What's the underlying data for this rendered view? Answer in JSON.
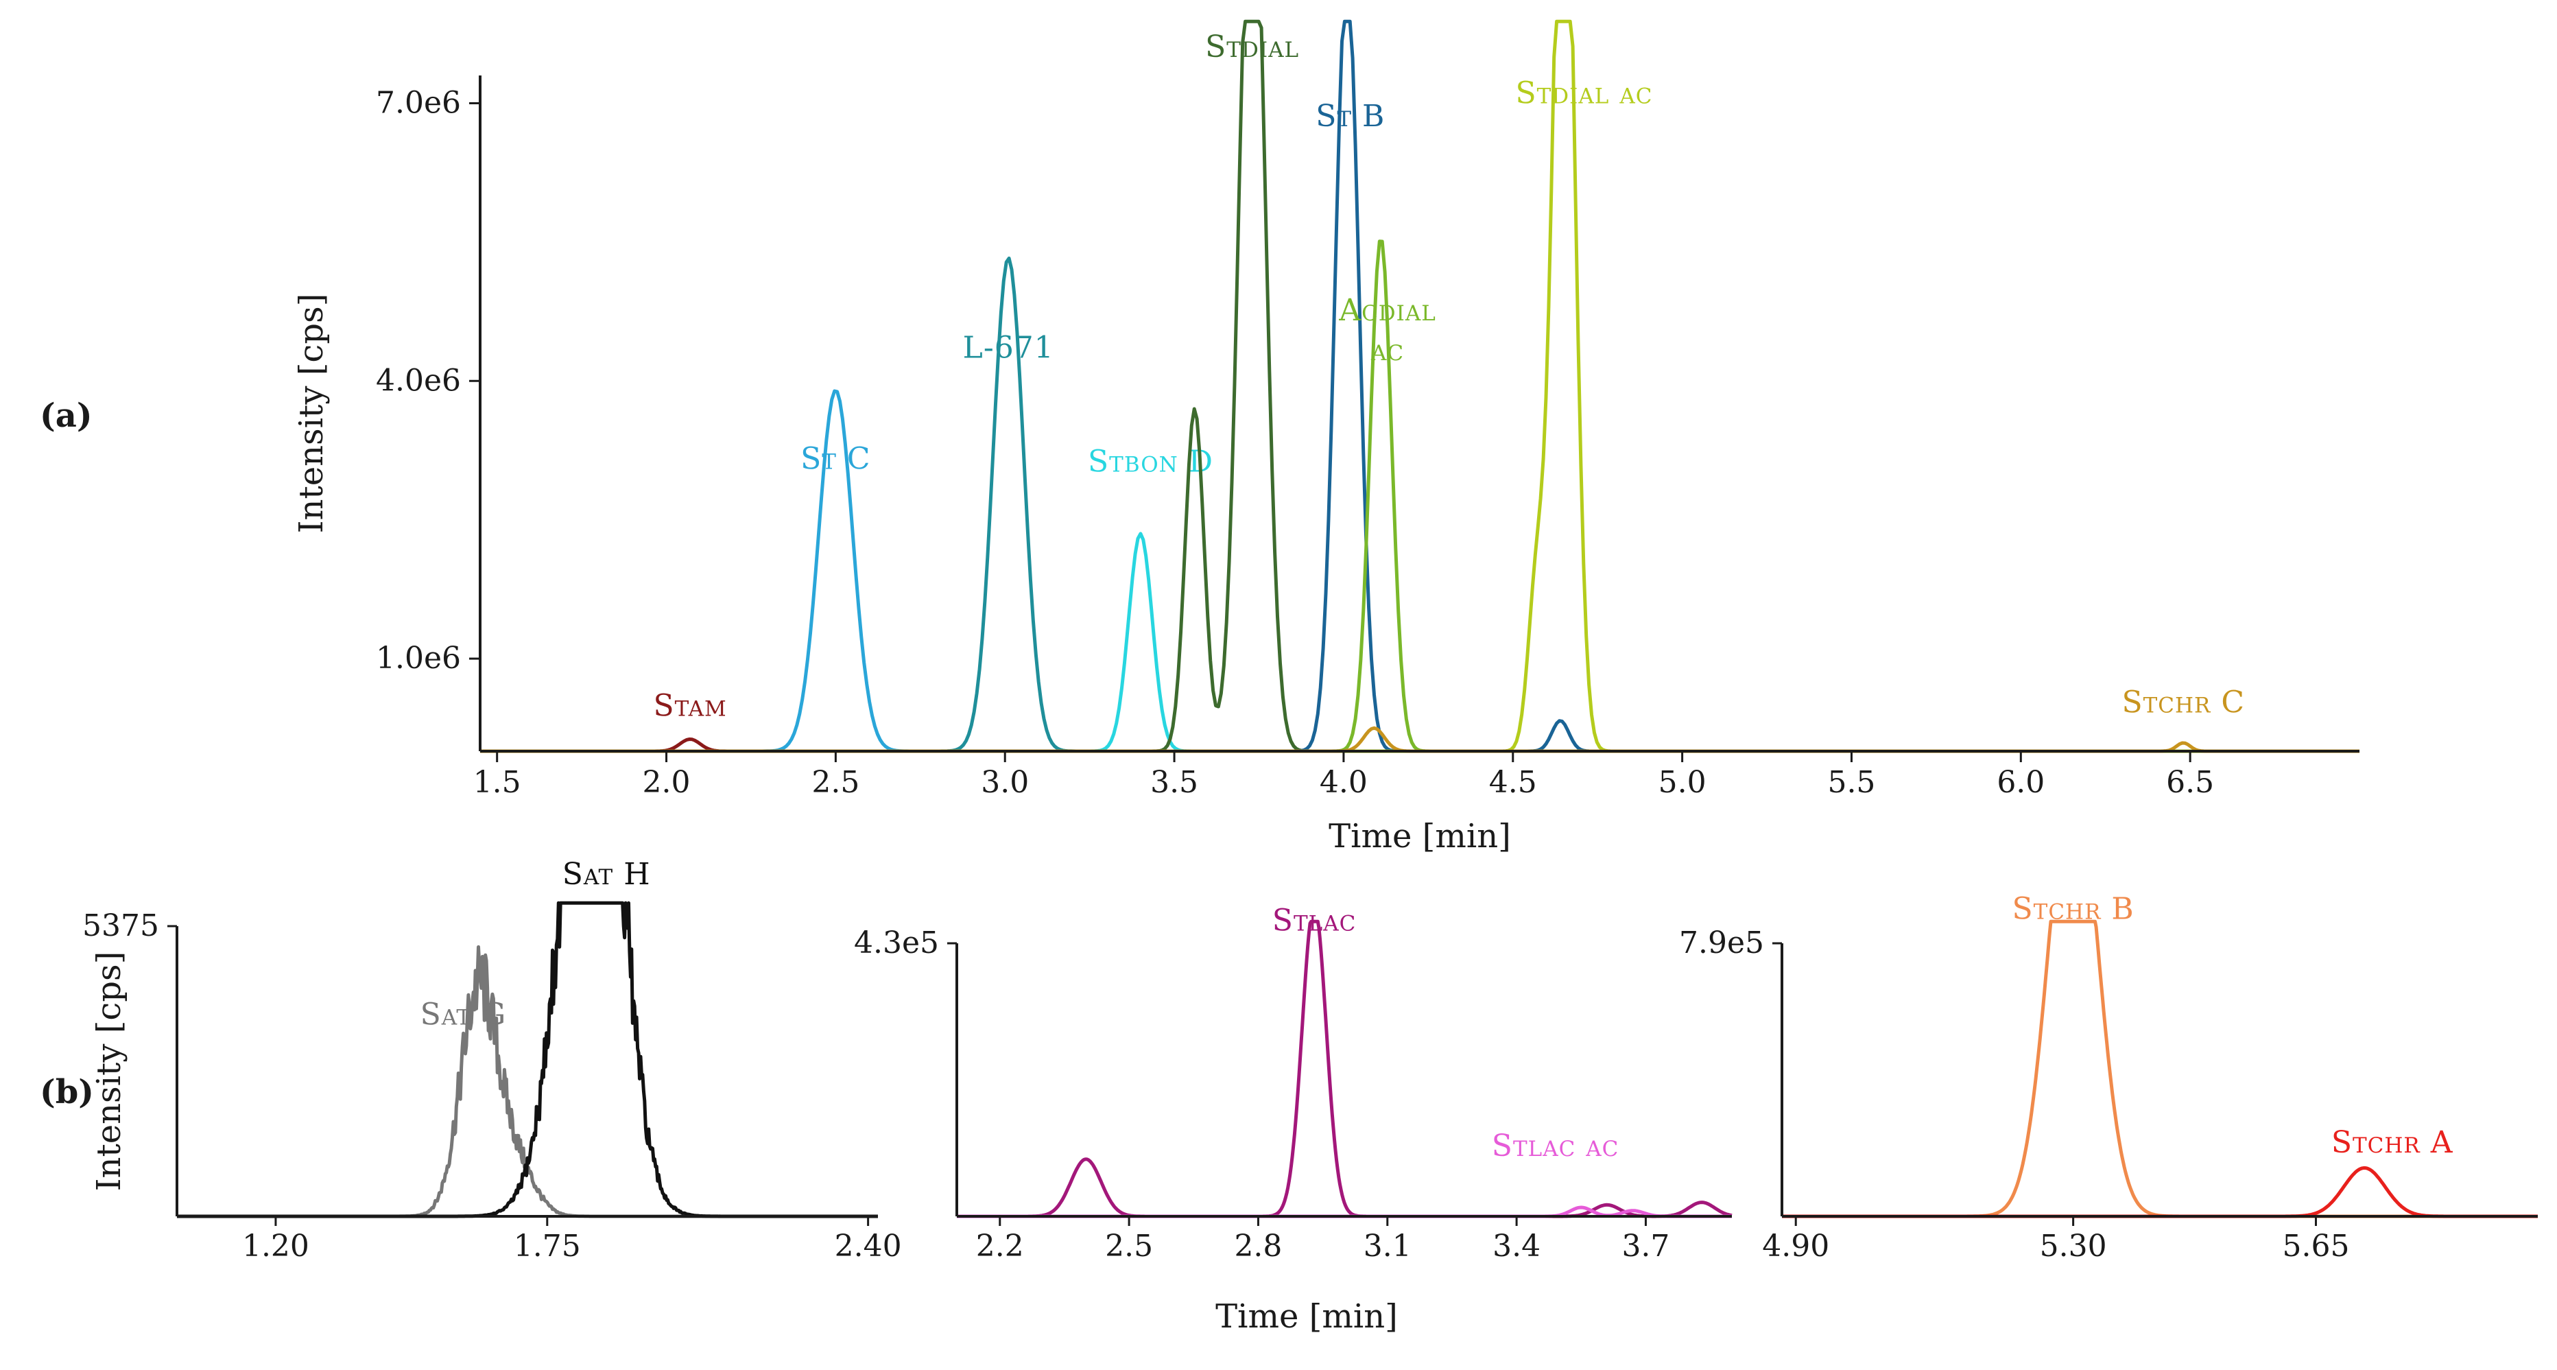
{
  "figure": {
    "panel_a_label": "(a)",
    "panel_b_label": "(b)",
    "shared_xlabel": "Time [min]"
  },
  "chart_data": [
    {
      "type": "line",
      "id": "a",
      "xlabel": "Time [min]",
      "ylabel": "Intensity [cps]",
      "xlim": [
        1.45,
        7.0
      ],
      "ylim": [
        0,
        7300000
      ],
      "x_ticks": [
        "1.5",
        "2.0",
        "2.5",
        "3.0",
        "3.5",
        "4.0",
        "4.5",
        "5.0",
        "5.5",
        "6.0",
        "6.5"
      ],
      "y_ticks": [
        {
          "value": 1000000,
          "label": "1.0e6"
        },
        {
          "value": 4000000,
          "label": "4.0e6"
        },
        {
          "value": 7000000,
          "label": "7.0e6"
        }
      ],
      "series": [
        {
          "name": "Stam",
          "color": "#8b1a1a",
          "peaks": [
            [
              2.07,
              75000,
              0.03
            ],
            [
              2.07,
              55000,
              0.03
            ]
          ],
          "label_at": [
            2.07,
            380000
          ]
        },
        {
          "name": "St C",
          "color": "#2aa6d9",
          "peaks": [
            [
              2.5,
              2850000,
              0.05
            ],
            [
              2.5,
              1050000,
              0.05
            ]
          ],
          "label_at": [
            2.5,
            3050000
          ]
        },
        {
          "name": "L-671",
          "color": "#1f8f9a",
          "peaks": [
            [
              3.01,
              4050000,
              0.045
            ],
            [
              3.01,
              1280000,
              0.045
            ]
          ],
          "label_at": [
            3.01,
            4250000
          ]
        },
        {
          "name": "Stbon D",
          "color": "#28d6e0",
          "peaks": [
            [
              3.4,
              1350000,
              0.035
            ],
            [
              3.4,
              1000000,
              0.035
            ]
          ],
          "label_at": [
            3.43,
            3020000
          ]
        },
        {
          "name": "Stdial",
          "color": "#3d6b2e",
          "peaks": [
            [
              3.73,
              7200000,
              0.038
            ],
            [
              3.56,
              2700000,
              0.028
            ],
            [
              3.73,
              2900000,
              0.038
            ],
            [
              3.56,
              1000000,
              0.028
            ]
          ],
          "label_at": [
            3.73,
            7500000
          ]
        },
        {
          "name": "St B",
          "color": "#1a6496",
          "peaks": [
            [
              4.01,
              6500000,
              0.035
            ],
            [
              4.01,
              1900000,
              0.035
            ],
            [
              4.64,
              330000,
              0.025
            ]
          ],
          "label_at": [
            4.02,
            6750000
          ]
        },
        {
          "name": "Acdial ac",
          "color": "#7ab82a",
          "peaks": [
            [
              4.11,
              3300000,
              0.032
            ],
            [
              4.11,
              2250000,
              0.032
            ]
          ],
          "label_at": [
            4.13,
            4300000
          ],
          "label_lines": [
            "Acdial",
            "ac"
          ]
        },
        {
          "name": "Stdial ac",
          "color": "#b4cc1c",
          "peaks": [
            [
              4.65,
              6550000,
              0.032
            ],
            [
              4.65,
              4300000,
              0.032
            ],
            [
              4.57,
              1800000,
              0.025
            ]
          ],
          "label_at": [
            4.71,
            7000000
          ]
        },
        {
          "name": "Stchr C",
          "color": "#c8941e",
          "peaks": [
            [
              6.48,
              90000,
              0.02
            ],
            [
              4.09,
              250000,
              0.03
            ]
          ],
          "label_at": [
            6.48,
            420000
          ]
        }
      ]
    },
    {
      "type": "line",
      "id": "b1",
      "xlabel": "",
      "ylabel": "Intensity [cps]",
      "xlim": [
        1.0,
        2.42
      ],
      "ylim": [
        0,
        5375
      ],
      "x_ticks": [
        "1.20",
        "1.75",
        "2.40"
      ],
      "y_ticks": [
        {
          "value": 5375,
          "label": "5375"
        }
      ],
      "series": [
        {
          "name": "Sat G",
          "color": "#777777",
          "peaks": [
            [
              1.61,
              2950,
              0.035
            ],
            [
              1.68,
              1050,
              0.04
            ],
            [
              1.61,
              1150,
              0.04
            ]
          ],
          "label_at": [
            1.58,
            3550
          ]
        },
        {
          "name": "Sat H",
          "color": "#111111",
          "peaks": [
            [
              1.85,
              5750,
              0.05
            ],
            [
              1.82,
              3700,
              0.06
            ],
            [
              1.85,
              2650,
              0.06
            ]
          ],
          "label_at": [
            1.87,
            6150
          ]
        }
      ]
    },
    {
      "type": "line",
      "id": "b2",
      "xlabel": "",
      "ylabel": "",
      "xlim": [
        2.1,
        3.9
      ],
      "ylim": [
        0,
        430000
      ],
      "x_ticks": [
        "2.2",
        "2.5",
        "2.8",
        "3.1",
        "3.4",
        "3.7"
      ],
      "y_ticks": [
        {
          "value": 430000,
          "label": "4.3e5"
        }
      ],
      "series": [
        {
          "name": "Stlac",
          "color": "#a3177a",
          "peaks": [
            [
              2.93,
              420000,
              0.028
            ],
            [
              2.93,
              70000,
              0.028
            ],
            [
              2.4,
              65000,
              0.035
            ],
            [
              2.4,
              25000,
              0.035
            ],
            [
              3.83,
              22000,
              0.03
            ],
            [
              3.61,
              18000,
              0.03
            ]
          ],
          "label_at": [
            2.93,
            450000
          ]
        },
        {
          "name": "Stlac ac",
          "color": "#e65bd8",
          "peaks": [
            [
              3.55,
              14000,
              0.025
            ],
            [
              3.67,
              9000,
              0.025
            ]
          ],
          "label_at": [
            3.49,
            95000
          ]
        }
      ]
    },
    {
      "type": "line",
      "id": "b3",
      "xlabel": "",
      "ylabel": "",
      "xlim": [
        4.88,
        5.97
      ],
      "ylim": [
        0,
        790000
      ],
      "x_ticks": [
        "4.90",
        "5.30",
        "5.65"
      ],
      "y_ticks": [
        {
          "value": 790000,
          "label": "7.9e5"
        }
      ],
      "series": [
        {
          "name": "Stchr B",
          "color": "#f08a4b",
          "peaks": [
            [
              5.3,
              790000,
              0.035
            ],
            [
              5.3,
              520000,
              0.035
            ]
          ],
          "label_at": [
            5.3,
            860000
          ]
        },
        {
          "name": "Stchr A",
          "color": "#e8201c",
          "peaks": [
            [
              5.72,
              85000,
              0.03
            ],
            [
              5.72,
              55000,
              0.03
            ]
          ],
          "label_at": [
            5.76,
            185000
          ]
        }
      ]
    }
  ]
}
